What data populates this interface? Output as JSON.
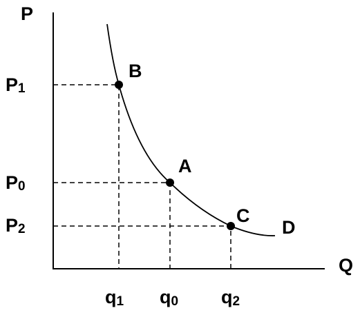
{
  "axes": {
    "y_label": "P",
    "x_label": "Q"
  },
  "price_levels": [
    {
      "base": "P",
      "sub": "1"
    },
    {
      "base": "P",
      "sub": "0"
    },
    {
      "base": "P",
      "sub": "2"
    }
  ],
  "quantity_levels": [
    {
      "base": "q",
      "sub": "1"
    },
    {
      "base": "q",
      "sub": "0"
    },
    {
      "base": "q",
      "sub": "2"
    }
  ],
  "points": [
    "B",
    "A",
    "C"
  ],
  "curve_label": "D"
}
